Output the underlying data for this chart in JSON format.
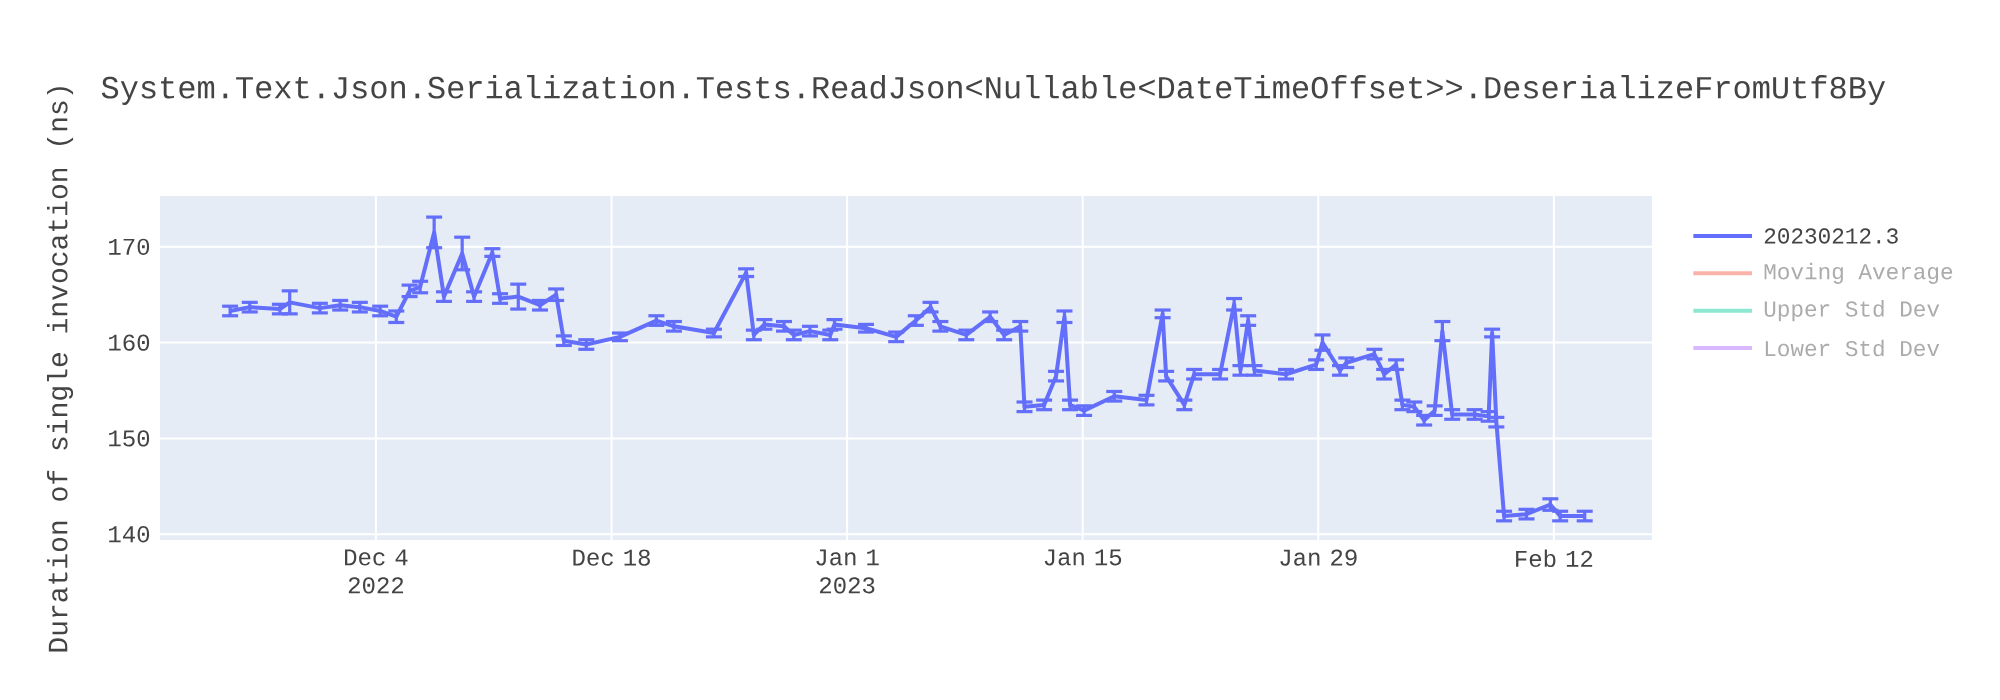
{
  "chart_data": {
    "type": "line",
    "title": "System.Text.Json.Serialization.Tests.ReadJson<Nullable<DateTimeOffset>>.DeserializeFromUtf8By",
    "ylabel": "Duration of single invocation (ns)",
    "x": [
      "2022-11-25T08:00",
      "2022-11-26T12:00",
      "2022-11-28T07:00",
      "2022-11-28T21:00",
      "2022-11-30T16:00",
      "2022-12-01T21:00",
      "2022-12-03T01:00",
      "2022-12-04T06:00",
      "2022-12-05T05:00",
      "2022-12-06T00:00",
      "2022-12-06T15:00",
      "2022-12-07T11:00",
      "2022-12-08T01:00",
      "2022-12-09T03:00",
      "2022-12-09T20:00",
      "2022-12-10T22:00",
      "2022-12-11T09:00",
      "2022-12-12T11:00",
      "2022-12-13T18:00",
      "2022-12-14T17:00",
      "2022-12-15T04:00",
      "2022-12-16T12:00",
      "2022-12-18T12:00",
      "2022-12-20T16:00",
      "2022-12-21T17:00",
      "2022-12-24T02:00",
      "2022-12-26T00:00",
      "2022-12-26T11:00",
      "2022-12-27T02:00",
      "2022-12-28T06:00",
      "2022-12-28T20:00",
      "2022-12-29T19:00",
      "2022-12-31T00:00",
      "2022-12-31T06:00",
      "2023-01-02T03:00",
      "2023-01-03T22:00",
      "2023-01-05T02:00",
      "2023-01-05T23:00",
      "2023-01-06T13:00",
      "2023-01-08T02:00",
      "2023-01-09T12:00",
      "2023-01-10T08:00",
      "2023-01-11T07:00",
      "2023-01-11T13:00",
      "2023-01-12T17:00",
      "2023-01-13T10:00",
      "2023-01-13T22:00",
      "2023-01-14T06:00",
      "2023-01-15T02:00",
      "2023-01-16T21:00",
      "2023-01-18T19:00",
      "2023-01-19T18:00",
      "2023-01-19T23:00",
      "2023-01-21T01:00",
      "2023-01-21T15:00",
      "2023-01-23T04:00",
      "2023-01-24T00:00",
      "2023-01-24T09:00",
      "2023-01-24T20:00",
      "2023-01-25T05:00",
      "2023-01-27T02:00",
      "2023-01-28T21:00",
      "2023-01-29T06:00",
      "2023-01-30T07:00",
      "2023-01-30T16:00",
      "2023-02-01T08:00",
      "2023-02-01T22:00",
      "2023-02-02T15:00",
      "2023-02-03T00:00",
      "2023-02-03T17:00",
      "2023-02-04T07:00",
      "2023-02-04T22:00",
      "2023-02-05T09:00",
      "2023-02-05T23:00",
      "2023-02-07T07:00",
      "2023-02-08T03:00",
      "2023-02-08T08:00",
      "2023-02-08T14:00",
      "2023-02-09T01:00",
      "2023-02-10T09:00",
      "2023-02-11T19:00",
      "2023-02-12T09:00",
      "2023-02-13T20:00"
    ],
    "series": [
      {
        "name": "20230212.3",
        "color": "#636efa",
        "values": [
          163.3,
          163.7,
          163.5,
          164.2,
          163.6,
          163.9,
          163.7,
          163.3,
          162.7,
          165.4,
          165.8,
          171.5,
          164.8,
          169.3,
          164.8,
          169.4,
          164.6,
          164.8,
          163.9,
          165.0,
          160.2,
          159.8,
          160.6,
          162.3,
          161.7,
          161.0,
          167.3,
          160.8,
          161.9,
          161.7,
          160.8,
          161.2,
          160.8,
          161.9,
          161.5,
          160.6,
          162.3,
          163.7,
          161.7,
          160.8,
          162.7,
          160.8,
          161.7,
          153.3,
          153.5,
          156.5,
          162.7,
          153.5,
          152.9,
          154.4,
          154.0,
          163.0,
          156.5,
          153.5,
          156.7,
          156.7,
          164.0,
          157.1,
          162.3,
          157.1,
          156.7,
          157.7,
          160.0,
          157.1,
          157.9,
          158.8,
          156.7,
          157.7,
          153.5,
          153.3,
          151.9,
          152.9,
          161.2,
          152.5,
          152.5,
          152.3,
          161.0,
          151.7,
          141.9,
          142.1,
          143.1,
          141.9,
          141.9
        ],
        "errors": [
          0.5,
          0.5,
          0.5,
          1.2,
          0.5,
          0.5,
          0.5,
          0.5,
          0.6,
          0.6,
          0.6,
          1.6,
          0.5,
          1.7,
          0.5,
          0.4,
          0.5,
          1.3,
          0.5,
          0.6,
          0.5,
          0.5,
          0.4,
          0.5,
          0.5,
          0.4,
          0.4,
          0.5,
          0.5,
          0.5,
          0.5,
          0.5,
          0.5,
          0.5,
          0.4,
          0.5,
          0.5,
          0.5,
          0.5,
          0.5,
          0.5,
          0.5,
          0.5,
          0.5,
          0.5,
          0.5,
          0.6,
          0.5,
          0.5,
          0.5,
          0.5,
          0.4,
          0.5,
          0.5,
          0.5,
          0.5,
          0.6,
          0.5,
          0.5,
          0.5,
          0.5,
          0.5,
          0.8,
          0.5,
          0.5,
          0.5,
          0.5,
          0.5,
          0.5,
          0.5,
          0.5,
          0.5,
          1.0,
          0.5,
          0.5,
          0.5,
          0.4,
          0.5,
          0.5,
          0.5,
          0.6,
          0.5,
          0.5
        ]
      },
      {
        "name": "Moving Average",
        "color": "#f8b2a7",
        "values": [
          null,
          null,
          null,
          null,
          null,
          null,
          null,
          null,
          null,
          null,
          null,
          null,
          null,
          null,
          null,
          null,
          null,
          null,
          null,
          null,
          null,
          null,
          null,
          null,
          null,
          null,
          null,
          null,
          null,
          null,
          null,
          null,
          null,
          null,
          null,
          null,
          null,
          null,
          null,
          null,
          null,
          null,
          null,
          null,
          null,
          null,
          null,
          null,
          null,
          null,
          null,
          null,
          null,
          null,
          null,
          null,
          null,
          null,
          null,
          null,
          null,
          null,
          null,
          null,
          null,
          null,
          null,
          null,
          null,
          null,
          null,
          null,
          null,
          null,
          null,
          null,
          null,
          null,
          null,
          null,
          null,
          null,
          null
        ]
      },
      {
        "name": "Upper Std Dev",
        "color": "#8ce8d0",
        "values": [
          null,
          null,
          null,
          null,
          null,
          null,
          null,
          null,
          null,
          null,
          null,
          null,
          null,
          null,
          null,
          null,
          null,
          null,
          null,
          null,
          null,
          null,
          null,
          null,
          null,
          null,
          null,
          null,
          null,
          null,
          null,
          null,
          null,
          null,
          null,
          null,
          null,
          null,
          null,
          null,
          null,
          null,
          null,
          null,
          null,
          null,
          null,
          null,
          null,
          null,
          null,
          null,
          null,
          null,
          null,
          null,
          null,
          null,
          null,
          null,
          null,
          null,
          null,
          null,
          null,
          null,
          null,
          null,
          null,
          null,
          null,
          null,
          null,
          null,
          null,
          null,
          null,
          null,
          null,
          null,
          null,
          null,
          null
        ]
      },
      {
        "name": "Lower Std Dev",
        "color": "#d9b9fd",
        "values": [
          null,
          null,
          null,
          null,
          null,
          null,
          null,
          null,
          null,
          null,
          null,
          null,
          null,
          null,
          null,
          null,
          null,
          null,
          null,
          null,
          null,
          null,
          null,
          null,
          null,
          null,
          null,
          null,
          null,
          null,
          null,
          null,
          null,
          null,
          null,
          null,
          null,
          null,
          null,
          null,
          null,
          null,
          null,
          null,
          null,
          null,
          null,
          null,
          null,
          null,
          null,
          null,
          null,
          null,
          null,
          null,
          null,
          null,
          null,
          null,
          null,
          null,
          null,
          null,
          null,
          null,
          null,
          null,
          null,
          null,
          null,
          null,
          null,
          null,
          null,
          null,
          null,
          null,
          null,
          null,
          null,
          null,
          null
        ]
      }
    ],
    "xlim": [
      "2022-11-21T04:00",
      "2023-02-17T20:00"
    ],
    "xticks": [
      {
        "value": "2022-12-04",
        "label": "Dec 4 2022"
      },
      {
        "value": "2022-12-18",
        "label": "Dec 18"
      },
      {
        "value": "2023-01-01",
        "label": "Jan 1 2023"
      },
      {
        "value": "2023-01-15",
        "label": "Jan 15"
      },
      {
        "value": "2023-01-29",
        "label": "Jan 29"
      },
      {
        "value": "2023-02-12",
        "label": "Feb 12"
      }
    ],
    "ylim": [
      139.4,
      175.3
    ],
    "yticks": [
      140,
      150,
      160,
      170
    ],
    "grid": true,
    "legend": "right"
  }
}
